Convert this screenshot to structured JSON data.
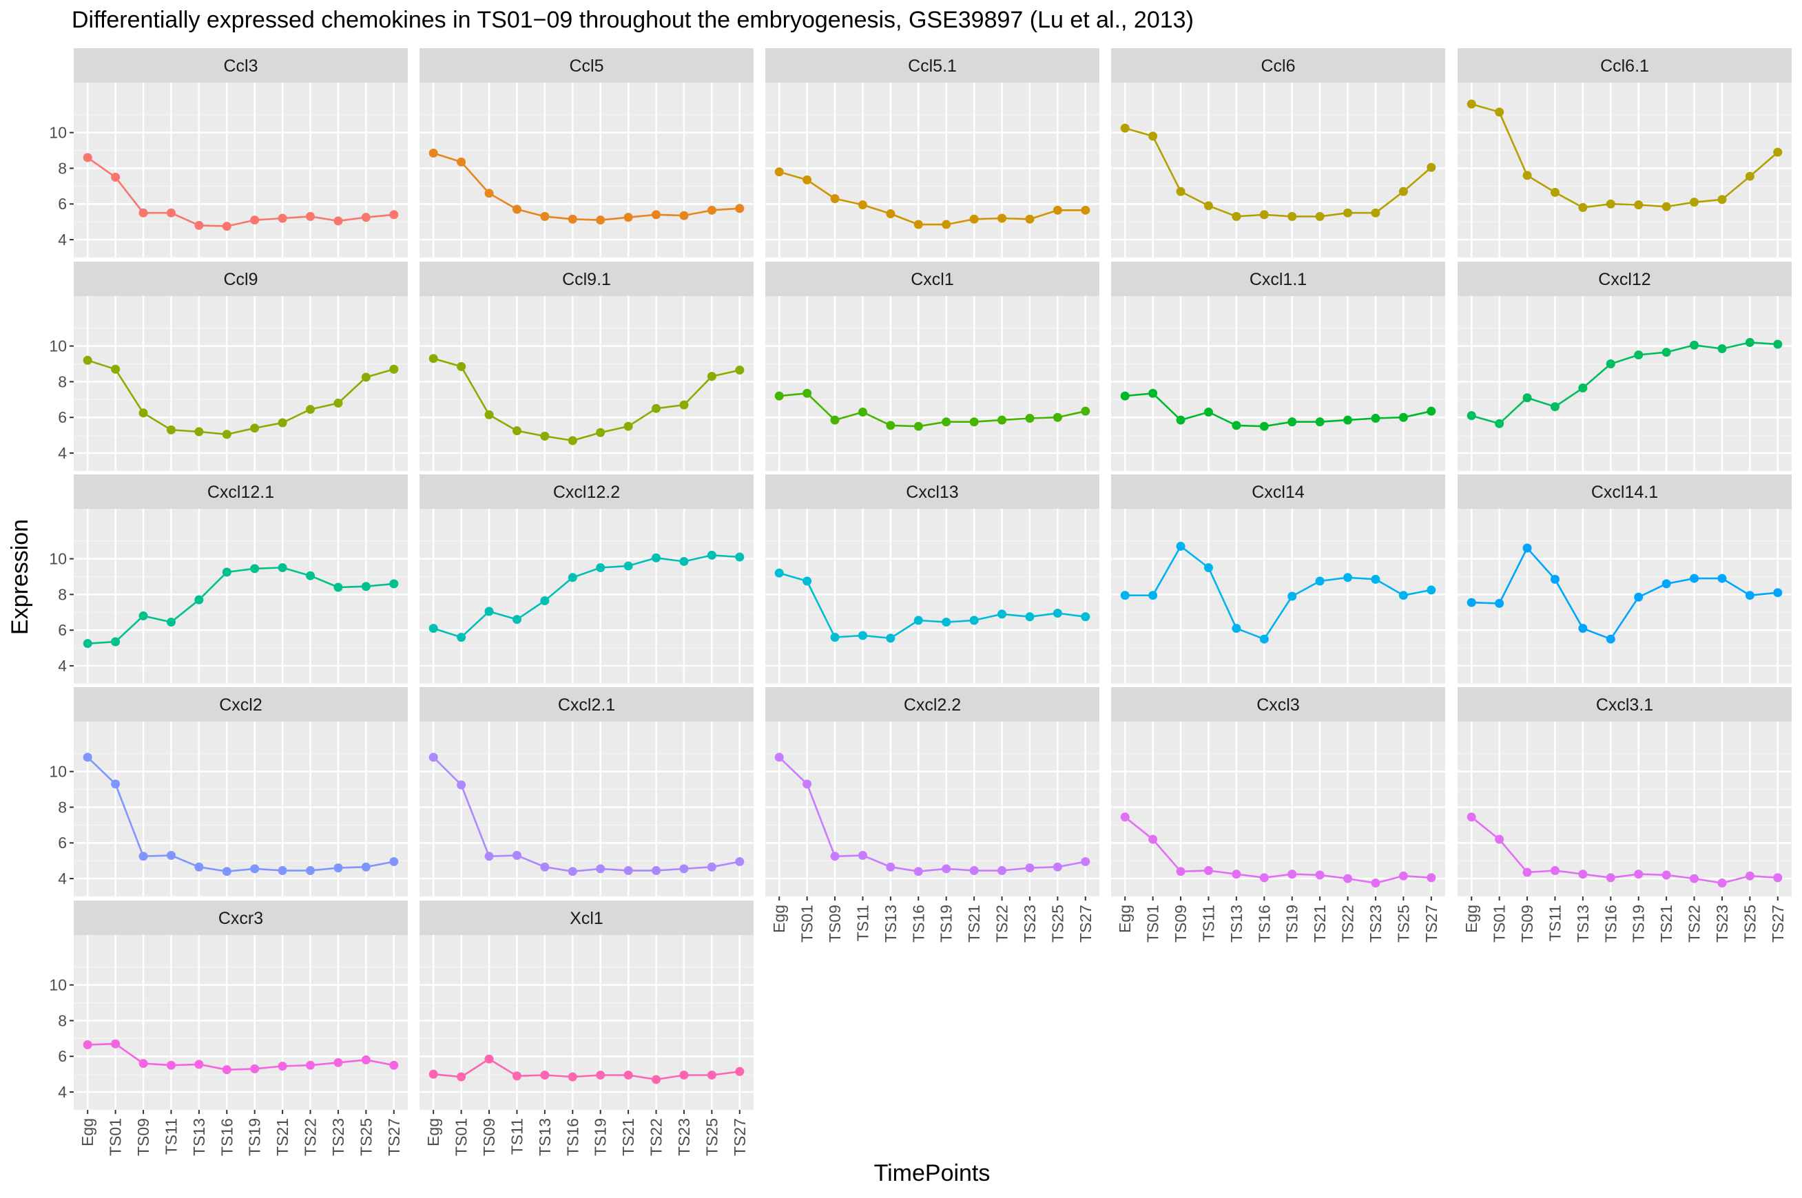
{
  "chart_data": {
    "type": "line",
    "title": "Differentially expressed chemokines in TS01−09 throughout the embryogenesis, GSE39897 (Lu et al., 2013)",
    "xlabel": "TimePoints",
    "ylabel": "Expression",
    "categories": [
      "Egg",
      "TS01",
      "TS09",
      "TS11",
      "TS13",
      "TS16",
      "TS19",
      "TS21",
      "TS22",
      "TS23",
      "TS25",
      "TS27"
    ],
    "yticks": [
      4,
      6,
      8,
      10
    ],
    "ylim": [
      3.0,
      12.8
    ],
    "grid": true,
    "facets": [
      {
        "name": "Ccl3",
        "color": "#F8766D",
        "values": [
          8.6,
          7.5,
          5.5,
          5.5,
          4.8,
          4.75,
          5.1,
          5.2,
          5.3,
          5.05,
          5.25,
          5.4
        ]
      },
      {
        "name": "Ccl5",
        "color": "#E7851E",
        "values": [
          8.85,
          8.35,
          6.6,
          5.7,
          5.3,
          5.15,
          5.1,
          5.25,
          5.4,
          5.35,
          5.65,
          5.75
        ]
      },
      {
        "name": "Ccl5.1",
        "color": "#D09400",
        "values": [
          7.8,
          7.35,
          6.3,
          5.95,
          5.45,
          4.85,
          4.85,
          5.15,
          5.2,
          5.15,
          5.65,
          5.65
        ]
      },
      {
        "name": "Ccl6",
        "color": "#B2A100",
        "values": [
          10.25,
          9.8,
          6.7,
          5.9,
          5.3,
          5.4,
          5.3,
          5.3,
          5.5,
          5.5,
          6.7,
          8.05
        ]
      },
      {
        "name": "Ccl6.1",
        "color": "#B2A100",
        "values": [
          11.6,
          11.15,
          7.6,
          6.65,
          5.8,
          6.0,
          5.95,
          5.85,
          6.1,
          6.25,
          7.55,
          8.9
        ]
      },
      {
        "name": "Ccl9",
        "color": "#89AC00",
        "values": [
          9.2,
          8.7,
          6.25,
          5.3,
          5.2,
          5.05,
          5.4,
          5.7,
          6.45,
          6.8,
          8.25,
          8.7
        ]
      },
      {
        "name": "Ccl9.1",
        "color": "#89AC00",
        "values": [
          9.3,
          8.85,
          6.15,
          5.25,
          4.95,
          4.7,
          5.15,
          5.5,
          6.5,
          6.7,
          8.3,
          8.65
        ]
      },
      {
        "name": "Cxcl1",
        "color": "#45B500",
        "values": [
          7.2,
          7.35,
          5.85,
          6.3,
          5.55,
          5.5,
          5.75,
          5.75,
          5.85,
          5.95,
          6.0,
          6.35
        ]
      },
      {
        "name": "Cxcl1.1",
        "color": "#00B92A",
        "values": [
          7.2,
          7.35,
          5.85,
          6.3,
          5.55,
          5.5,
          5.75,
          5.75,
          5.85,
          5.95,
          6.0,
          6.35
        ]
      },
      {
        "name": "Cxcl12",
        "color": "#00BD5F",
        "values": [
          6.1,
          5.65,
          7.1,
          6.6,
          7.65,
          9.0,
          9.5,
          9.65,
          10.05,
          9.85,
          10.2,
          10.1
        ]
      },
      {
        "name": "Cxcl12.1",
        "color": "#00C08D",
        "values": [
          5.25,
          5.35,
          6.8,
          6.45,
          7.7,
          9.25,
          9.45,
          9.5,
          9.05,
          8.4,
          8.45,
          8.6
        ]
      },
      {
        "name": "Cxcl12.2",
        "color": "#00C0B4",
        "values": [
          6.1,
          5.6,
          7.05,
          6.6,
          7.65,
          8.95,
          9.5,
          9.6,
          10.05,
          9.85,
          10.2,
          10.1
        ]
      },
      {
        "name": "Cxcl13",
        "color": "#00BCD6",
        "values": [
          9.2,
          8.75,
          5.6,
          5.7,
          5.55,
          6.55,
          6.45,
          6.55,
          6.9,
          6.75,
          6.95,
          6.75
        ]
      },
      {
        "name": "Cxcl14",
        "color": "#00B3F0",
        "values": [
          7.95,
          7.95,
          10.7,
          9.5,
          6.1,
          5.5,
          7.9,
          8.75,
          8.95,
          8.85,
          7.95,
          8.25
        ]
      },
      {
        "name": "Cxcl14.1",
        "color": "#00A5FF",
        "values": [
          7.55,
          7.5,
          10.6,
          8.85,
          6.1,
          5.5,
          7.85,
          8.6,
          8.9,
          8.9,
          7.95,
          8.1
        ]
      },
      {
        "name": "Cxcl2",
        "color": "#7F96FF",
        "values": [
          10.8,
          9.3,
          5.25,
          5.3,
          4.65,
          4.4,
          4.55,
          4.45,
          4.45,
          4.6,
          4.65,
          4.95
        ]
      },
      {
        "name": "Cxcl2.1",
        "color": "#AC88FF",
        "values": [
          10.8,
          9.25,
          5.25,
          5.3,
          4.65,
          4.4,
          4.55,
          4.45,
          4.45,
          4.55,
          4.65,
          4.95
        ]
      },
      {
        "name": "Cxcl2.2",
        "color": "#C77CFF",
        "values": [
          10.8,
          9.3,
          5.25,
          5.3,
          4.65,
          4.4,
          4.55,
          4.45,
          4.45,
          4.6,
          4.65,
          4.95
        ]
      },
      {
        "name": "Cxcl3",
        "color": "#E36EF6",
        "values": [
          7.45,
          6.2,
          4.4,
          4.45,
          4.25,
          4.05,
          4.25,
          4.2,
          4.0,
          3.75,
          4.15,
          4.05
        ]
      },
      {
        "name": "Cxcl3.1",
        "color": "#E36EF6",
        "values": [
          7.45,
          6.2,
          4.35,
          4.45,
          4.25,
          4.05,
          4.25,
          4.2,
          4.0,
          3.75,
          4.15,
          4.05
        ]
      },
      {
        "name": "Cxcr3",
        "color": "#F564E3",
        "values": [
          6.65,
          6.7,
          5.6,
          5.5,
          5.55,
          5.25,
          5.3,
          5.45,
          5.5,
          5.65,
          5.8,
          5.5
        ]
      },
      {
        "name": "Xcl1",
        "color": "#FF64B0",
        "values": [
          5.0,
          4.85,
          5.85,
          4.9,
          4.95,
          4.85,
          4.95,
          4.95,
          4.7,
          4.95,
          4.95,
          5.15
        ]
      }
    ]
  }
}
